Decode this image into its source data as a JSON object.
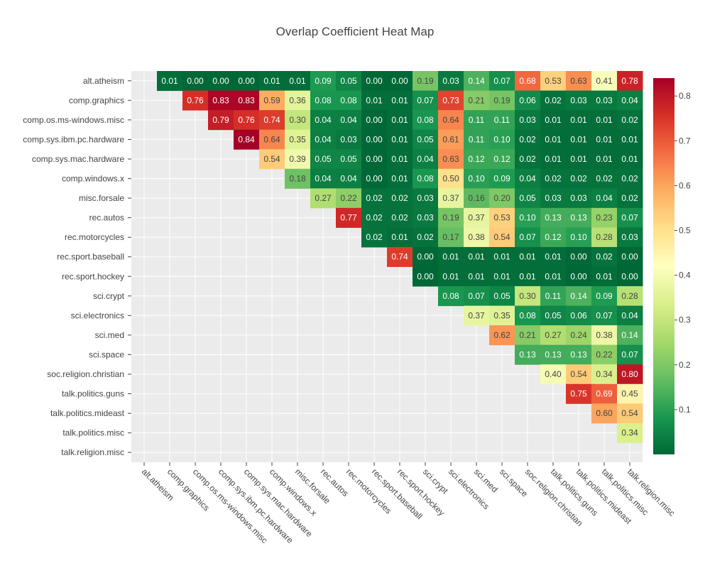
{
  "chart_data": {
    "type": "heatmap",
    "title": "Overlap Coefficient Heat Map",
    "xlabel": "",
    "ylabel": "",
    "categories": [
      "alt.atheism",
      "comp.graphics",
      "comp.os.ms-windows.misc",
      "comp.sys.ibm.pc.hardware",
      "comp.sys.mac.hardware",
      "comp.windows.x",
      "misc.forsale",
      "rec.autos",
      "rec.motorcycles",
      "rec.sport.baseball",
      "rec.sport.hockey",
      "sci.crypt",
      "sci.electronics",
      "sci.med",
      "sci.space",
      "soc.religion.christian",
      "talk.politics.guns",
      "talk.politics.mideast",
      "talk.politics.misc",
      "talk.religion.misc"
    ],
    "values": [
      [
        null,
        0.01,
        0.0,
        0.0,
        0.0,
        0.01,
        0.01,
        0.09,
        0.05,
        0.0,
        0.0,
        0.19,
        0.03,
        0.14,
        0.07,
        0.68,
        0.53,
        0.63,
        0.41,
        0.78
      ],
      [
        null,
        null,
        0.76,
        0.83,
        0.83,
        0.59,
        0.36,
        0.08,
        0.08,
        0.01,
        0.01,
        0.07,
        0.73,
        0.21,
        0.19,
        0.06,
        0.02,
        0.03,
        0.03,
        0.04
      ],
      [
        null,
        null,
        null,
        0.79,
        0.76,
        0.74,
        0.3,
        0.04,
        0.04,
        0.0,
        0.01,
        0.08,
        0.64,
        0.11,
        0.11,
        0.03,
        0.01,
        0.01,
        0.01,
        0.02
      ],
      [
        null,
        null,
        null,
        null,
        0.84,
        0.64,
        0.35,
        0.04,
        0.03,
        0.0,
        0.01,
        0.05,
        0.61,
        0.11,
        0.1,
        0.02,
        0.01,
        0.01,
        0.01,
        0.01
      ],
      [
        null,
        null,
        null,
        null,
        null,
        0.54,
        0.39,
        0.05,
        0.05,
        0.0,
        0.01,
        0.04,
        0.63,
        0.12,
        0.12,
        0.02,
        0.01,
        0.01,
        0.01,
        0.01
      ],
      [
        null,
        null,
        null,
        null,
        null,
        null,
        0.18,
        0.04,
        0.04,
        0.0,
        0.01,
        0.08,
        0.5,
        0.1,
        0.09,
        0.04,
        0.02,
        0.02,
        0.02,
        0.02
      ],
      [
        null,
        null,
        null,
        null,
        null,
        null,
        null,
        0.27,
        0.22,
        0.02,
        0.02,
        0.03,
        0.37,
        0.16,
        0.2,
        0.05,
        0.03,
        0.03,
        0.04,
        0.02
      ],
      [
        null,
        null,
        null,
        null,
        null,
        null,
        null,
        null,
        0.77,
        0.02,
        0.02,
        0.03,
        0.19,
        0.37,
        0.53,
        0.1,
        0.13,
        0.13,
        0.23,
        0.07
      ],
      [
        null,
        null,
        null,
        null,
        null,
        null,
        null,
        null,
        null,
        0.02,
        0.01,
        0.02,
        0.17,
        0.38,
        0.54,
        0.07,
        0.12,
        0.1,
        0.28,
        0.03
      ],
      [
        null,
        null,
        null,
        null,
        null,
        null,
        null,
        null,
        null,
        null,
        0.74,
        0.0,
        0.01,
        0.01,
        0.01,
        0.01,
        0.01,
        0.0,
        0.02,
        0.0
      ],
      [
        null,
        null,
        null,
        null,
        null,
        null,
        null,
        null,
        null,
        null,
        null,
        0.0,
        0.01,
        0.01,
        0.01,
        0.01,
        0.01,
        0.0,
        0.01,
        0.0
      ],
      [
        null,
        null,
        null,
        null,
        null,
        null,
        null,
        null,
        null,
        null,
        null,
        null,
        0.08,
        0.07,
        0.05,
        0.3,
        0.11,
        0.14,
        0.09,
        0.28
      ],
      [
        null,
        null,
        null,
        null,
        null,
        null,
        null,
        null,
        null,
        null,
        null,
        null,
        null,
        0.37,
        0.35,
        0.08,
        0.05,
        0.06,
        0.07,
        0.04
      ],
      [
        null,
        null,
        null,
        null,
        null,
        null,
        null,
        null,
        null,
        null,
        null,
        null,
        null,
        null,
        0.62,
        0.21,
        0.27,
        0.24,
        0.38,
        0.14
      ],
      [
        null,
        null,
        null,
        null,
        null,
        null,
        null,
        null,
        null,
        null,
        null,
        null,
        null,
        null,
        null,
        0.13,
        0.13,
        0.13,
        0.22,
        0.07
      ],
      [
        null,
        null,
        null,
        null,
        null,
        null,
        null,
        null,
        null,
        null,
        null,
        null,
        null,
        null,
        null,
        null,
        0.4,
        0.54,
        0.34,
        0.8
      ],
      [
        null,
        null,
        null,
        null,
        null,
        null,
        null,
        null,
        null,
        null,
        null,
        null,
        null,
        null,
        null,
        null,
        null,
        0.75,
        0.69,
        0.45
      ],
      [
        null,
        null,
        null,
        null,
        null,
        null,
        null,
        null,
        null,
        null,
        null,
        null,
        null,
        null,
        null,
        null,
        null,
        null,
        0.6,
        0.54
      ],
      [
        null,
        null,
        null,
        null,
        null,
        null,
        null,
        null,
        null,
        null,
        null,
        null,
        null,
        null,
        null,
        null,
        null,
        null,
        null,
        0.34
      ],
      [
        null,
        null,
        null,
        null,
        null,
        null,
        null,
        null,
        null,
        null,
        null,
        null,
        null,
        null,
        null,
        null,
        null,
        null,
        null,
        null
      ]
    ],
    "zlim": [
      0.0,
      0.84
    ],
    "colorscale": "RdYlGn reversed",
    "colorbar_ticks": [
      "0.1",
      "0.2",
      "0.3",
      "0.4",
      "0.5",
      "0.6",
      "0.7",
      "0.8"
    ],
    "grid": true,
    "legend": "colorbar right"
  },
  "colors": {
    "plot_bg": "#ebebeb",
    "grid": "#ffffff",
    "text": "#444444"
  }
}
